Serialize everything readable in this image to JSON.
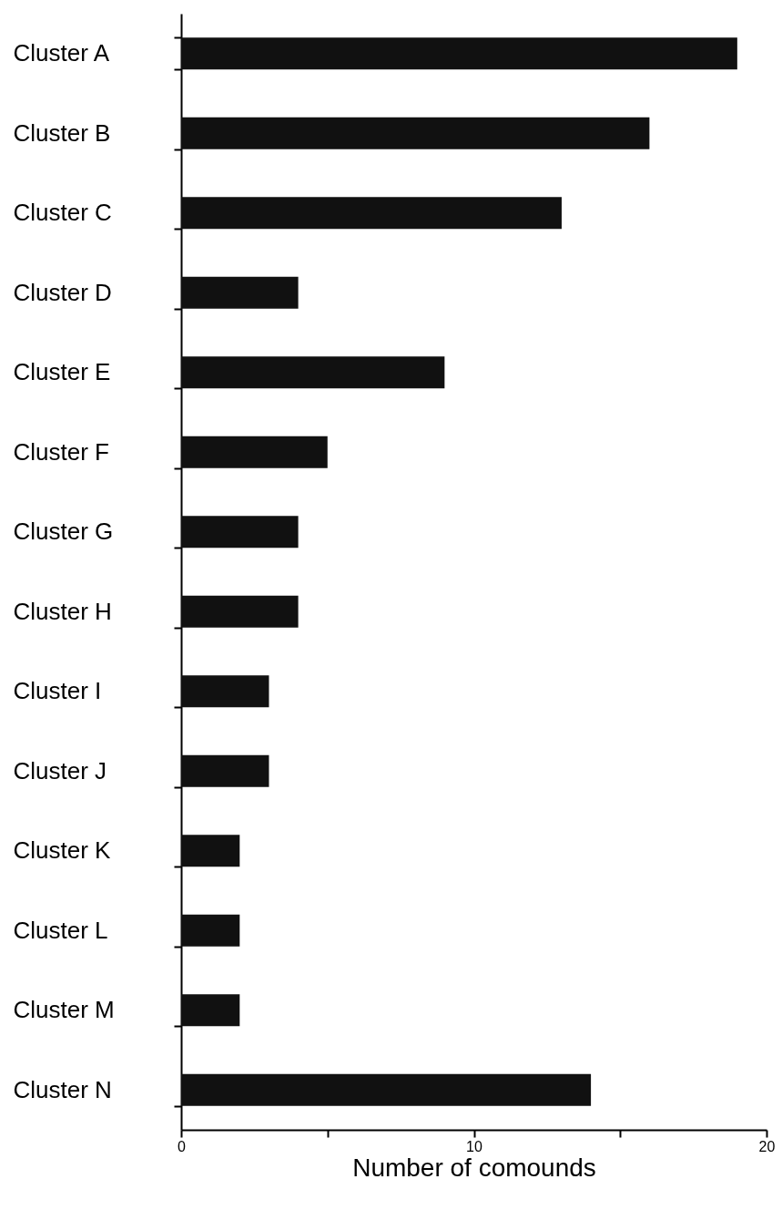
{
  "chart_data": {
    "type": "bar",
    "orientation": "horizontal",
    "xlabel": "Number of comounds",
    "categories": [
      "Cluster A",
      "Cluster B",
      "Cluster C",
      "Cluster D",
      "Cluster E",
      "Cluster F",
      "Cluster G",
      "Cluster H",
      "Cluster I",
      "Cluster J",
      "Cluster K",
      "Cluster L",
      "Cluster M",
      "Cluster N"
    ],
    "values": [
      19,
      16,
      13,
      4,
      9,
      5,
      4,
      4,
      3,
      3,
      2,
      2,
      2,
      14
    ],
    "color": "#111111",
    "xlim": [
      0,
      20
    ],
    "xticks": [
      0,
      {
        "value": 5,
        "label": null
      },
      10,
      {
        "value": 15,
        "label": null
      },
      20
    ],
    "grid": false
  }
}
